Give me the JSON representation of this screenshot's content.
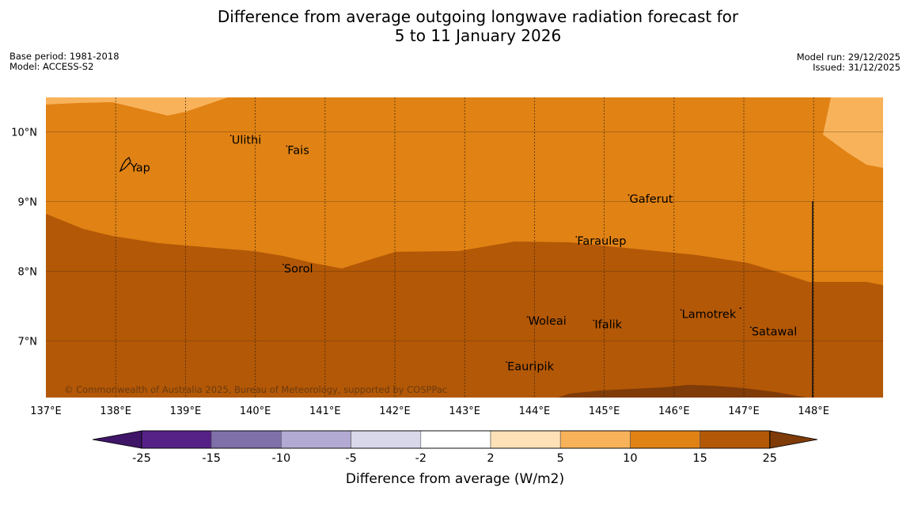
{
  "title_line1": "Difference from average outgoing longwave radiation forecast for",
  "title_line2": "5 to 11 January 2026",
  "base_period": "Base period: 1981-2018",
  "model": "Model: ACCESS-S2",
  "model_run": "Model run: 29/12/2025",
  "issued": "Issued: 31/12/2025",
  "copyright": "© Commonwealth of Australia 2025, Bureau of Meteorology, supported by COSPPac",
  "map": {
    "lon_range": [
      137,
      149
    ],
    "lat_range": [
      6.2,
      10.5
    ],
    "lon_ticks": [
      "137°E",
      "138°E",
      "139°E",
      "140°E",
      "141°E",
      "142°E",
      "143°E",
      "144°E",
      "145°E",
      "146°E",
      "147°E",
      "148°E"
    ],
    "lat_ticks": [
      "7°N",
      "8°N",
      "9°N",
      "10°N"
    ],
    "places": [
      {
        "name": "Yap",
        "lon": 138.2,
        "lat": 9.5
      },
      {
        "name": "Ulithi",
        "lon": 139.65,
        "lat": 9.9
      },
      {
        "name": "Fais",
        "lon": 140.45,
        "lat": 9.75
      },
      {
        "name": "Gaferut",
        "lon": 145.35,
        "lat": 9.05
      },
      {
        "name": "Faraulep",
        "lon": 144.6,
        "lat": 8.45
      },
      {
        "name": "Sorol",
        "lon": 140.4,
        "lat": 8.05
      },
      {
        "name": "Woleai",
        "lon": 143.9,
        "lat": 7.3
      },
      {
        "name": "Ifalik",
        "lon": 144.85,
        "lat": 7.25
      },
      {
        "name": "Lamotrek",
        "lon": 146.1,
        "lat": 7.4
      },
      {
        "name": "Satawal",
        "lon": 147.1,
        "lat": 7.15
      },
      {
        "name": "Eauripik",
        "lon": 143.6,
        "lat": 6.65
      }
    ]
  },
  "colorbar": {
    "levels": [
      "-25",
      "-15",
      "-10",
      "-5",
      "-2",
      "2",
      "5",
      "10",
      "15",
      "25"
    ],
    "colors": [
      "#3f1568",
      "#562187",
      "#7f70aa",
      "#b3aad3",
      "#d8d8ea",
      "#ffffff",
      "#fee1b6",
      "#f8b25a",
      "#e08214",
      "#b35806",
      "#7f3b08"
    ],
    "label": "Difference from average (W/m2)"
  }
}
